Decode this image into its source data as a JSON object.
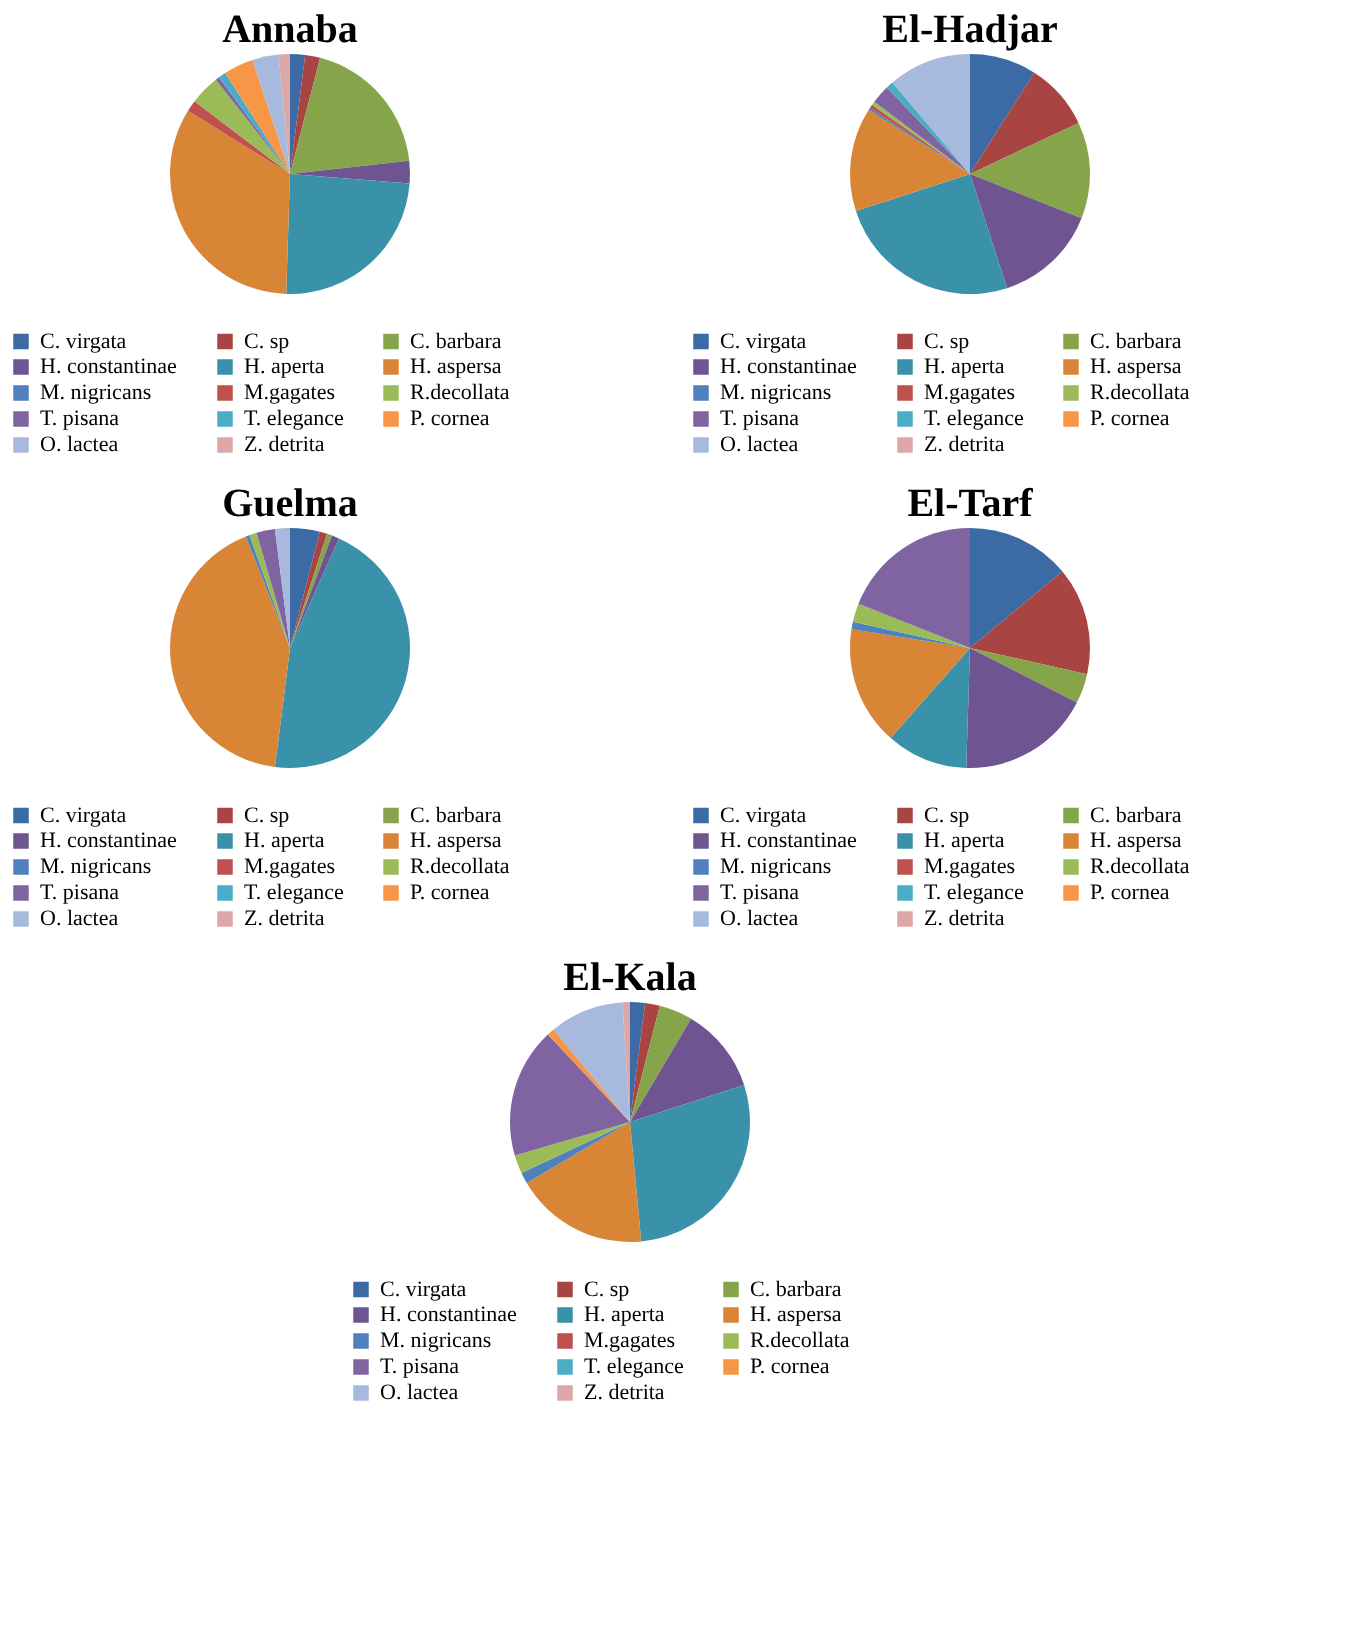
{
  "chart_data": [
    {
      "type": "pie",
      "title": "Annaba",
      "legend": "bottom",
      "categories": [
        "C. virgata",
        "C. sp",
        "C. barbara",
        "H. constantinae",
        "H. aperta",
        "H. aspersa",
        "M. nigricans",
        "M.gagates",
        "R.decollata",
        "T. pisana",
        "T. elegance",
        "P. cornea",
        "O. lactea",
        "Z. detrita"
      ],
      "values": [
        2,
        2,
        19,
        3,
        24,
        33,
        0,
        1.5,
        4,
        0.5,
        1,
        4,
        3.5,
        1.5
      ],
      "colors": [
        "#3c6aa4",
        "#a84441",
        "#86a54a",
        "#6e5490",
        "#3a92aa",
        "#d88536",
        "#4f81bd",
        "#c0504d",
        "#9bbb59",
        "#8064a2",
        "#4bacc6",
        "#f79646",
        "#a7b9dc",
        "#dca7a6"
      ]
    },
    {
      "type": "pie",
      "title": "El-Hadjar",
      "legend": "bottom",
      "categories": [
        "C. virgata",
        "C. sp",
        "C. barbara",
        "H. constantinae",
        "H. aperta",
        "H. aspersa",
        "M. nigricans",
        "M.gagates",
        "R.decollata",
        "T. pisana",
        "T. elegance",
        "P. cornea",
        "O. lactea",
        "Z. detrita"
      ],
      "values": [
        9,
        9,
        13,
        14,
        25,
        14,
        0.3,
        0.5,
        0.5,
        2.5,
        1,
        0,
        11.2,
        0
      ],
      "colors": [
        "#3c6aa4",
        "#a84441",
        "#86a54a",
        "#6e5490",
        "#3a92aa",
        "#d88536",
        "#4f81bd",
        "#c0504d",
        "#9bbb59",
        "#8064a2",
        "#4bacc6",
        "#f79646",
        "#a7b9dc",
        "#dca7a6"
      ]
    },
    {
      "type": "pie",
      "title": "Guelma",
      "legend": "bottom",
      "categories": [
        "C. virgata",
        "C. sp",
        "C. barbara",
        "H. constantinae",
        "H. aperta",
        "H. aspersa",
        "M. nigricans",
        "M.gagates",
        "R.decollata",
        "T. pisana",
        "T. elegance",
        "P. cornea",
        "O. lactea",
        "Z. detrita"
      ],
      "values": [
        4,
        1,
        0.7,
        1,
        45.3,
        42,
        0.5,
        0,
        1,
        2.5,
        0,
        0,
        2,
        0
      ],
      "colors": [
        "#3c6aa4",
        "#a84441",
        "#86a54a",
        "#6e5490",
        "#3a92aa",
        "#d88536",
        "#4f81bd",
        "#c0504d",
        "#9bbb59",
        "#8064a2",
        "#4bacc6",
        "#f79646",
        "#a7b9dc",
        "#dca7a6"
      ]
    },
    {
      "type": "pie",
      "title": "El-Tarf",
      "legend": "bottom",
      "categories": [
        "C. virgata",
        "C. sp",
        "C. barbara",
        "H. constantinae",
        "H. aperta",
        "H. aspersa",
        "M. nigricans",
        "M.gagates",
        "R.decollata",
        "T. pisana",
        "T. elegance",
        "P. cornea",
        "O. lactea",
        "Z. detrita"
      ],
      "values": [
        14,
        14.5,
        4,
        18,
        11,
        16,
        1,
        0,
        2.5,
        19,
        0,
        0,
        0,
        0
      ],
      "colors": [
        "#3c6aa4",
        "#a84441",
        "#86a54a",
        "#6e5490",
        "#3a92aa",
        "#d88536",
        "#4f81bd",
        "#c0504d",
        "#9bbb59",
        "#8064a2",
        "#4bacc6",
        "#f79646",
        "#a7b9dc",
        "#dca7a6"
      ]
    },
    {
      "type": "pie",
      "title": "El-Kala",
      "legend": "bottom",
      "categories": [
        "C. virgata",
        "C. sp",
        "C. barbara",
        "H. constantinae",
        "H. aperta",
        "H. aspersa",
        "M. nigricans",
        "M.gagates",
        "R.decollata",
        "T. pisana",
        "T. elegance",
        "P. cornea",
        "O. lactea",
        "Z. detrita"
      ],
      "values": [
        2,
        2,
        4.5,
        11.5,
        28.5,
        18,
        1.5,
        0,
        2.5,
        17.5,
        0,
        1,
        10,
        1
      ],
      "colors": [
        "#3c6aa4",
        "#a84441",
        "#86a54a",
        "#6e5490",
        "#3a92aa",
        "#d88536",
        "#4f81bd",
        "#c0504d",
        "#9bbb59",
        "#8064a2",
        "#4bacc6",
        "#f79646",
        "#a7b9dc",
        "#dca7a6"
      ]
    }
  ]
}
